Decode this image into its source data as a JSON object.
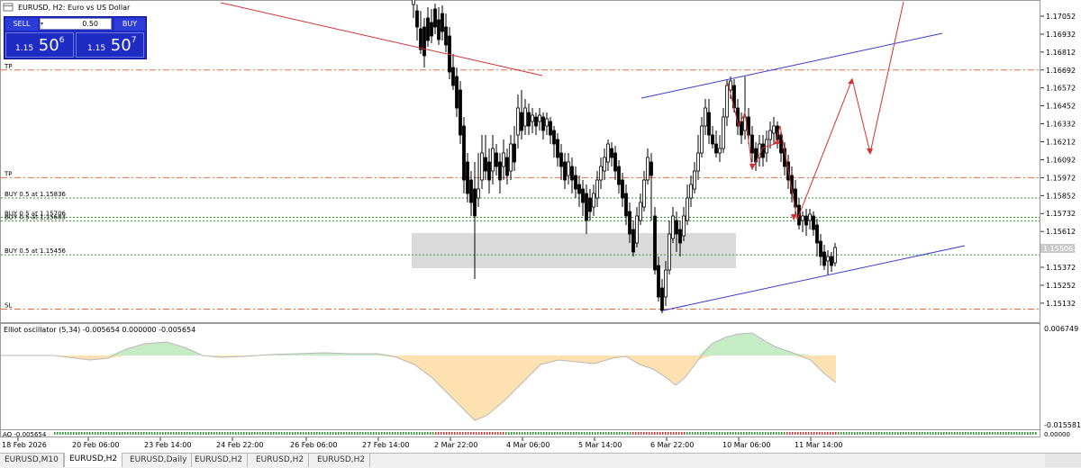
{
  "window": {
    "title": "EURUSD, H2:  Euro vs US Dollar"
  },
  "trade_panel": {
    "sell_label": "SELL",
    "buy_label": "BUY",
    "lot": "0.50",
    "sell_price": {
      "prefix": "1.15",
      "big": "50",
      "sup": "6"
    },
    "buy_price": {
      "prefix": "1.15",
      "big": "50",
      "sup": "7"
    }
  },
  "price_axis": {
    "ticks": [
      "1.17052",
      "1.16932",
      "1.16812",
      "1.16692",
      "1.16572",
      "1.16452",
      "1.16332",
      "1.16212",
      "1.16092",
      "1.15972",
      "1.15852",
      "1.15732",
      "1.15612",
      "1.15492",
      "1.15372",
      "1.15252",
      "1.15132"
    ],
    "current_price": "1.15506"
  },
  "levels": [
    {
      "label": "TP",
      "price": 1.16692,
      "type": "tp"
    },
    {
      "label": "TP",
      "price": 1.15972,
      "type": "tp"
    },
    {
      "label": "BUY 0.5 at 1.15836",
      "price": 1.15836,
      "type": "buy"
    },
    {
      "label": "BUY 0.5 at 1.15706",
      "price": 1.15706,
      "type": "buy"
    },
    {
      "label": "BUY 0.5 at 1.15683",
      "price": 1.15683,
      "type": "buy"
    },
    {
      "label": "BUY 0.5 at 1.15456",
      "price": 1.15456,
      "type": "buy"
    },
    {
      "label": "SL",
      "price": 1.15092,
      "type": "sl"
    }
  ],
  "oscillator": {
    "label": "Elliot oscillator (5,34) -0.005654 0.000000 -0.005654",
    "axis_top": "0.006749",
    "axis_bottom": "-0.015581",
    "ao_label": "AO -0.005654",
    "ao_axis": "0.00000"
  },
  "time_axis": [
    "18 Feb 2026",
    "20 Feb 06:00",
    "23 Feb 14:00",
    "24 Feb 22:00",
    "26 Feb 06:00",
    "27 Feb 14:00",
    "2 Mar 22:00",
    "4 Mar 06:00",
    "5 Mar 14:00",
    "6 Mar 22:00",
    "10 Mar 06:00",
    "11 Mar 14:00"
  ],
  "tabs": [
    {
      "label": "EURUSD,M10",
      "active": false
    },
    {
      "label": "EURUSD,H2",
      "active": true
    },
    {
      "label": "EURUSD,Daily",
      "active": false
    },
    {
      "label": "EURUSD,H2",
      "active": false
    },
    {
      "label": "EURUSD,H2",
      "active": false
    },
    {
      "label": "EURUSD,H2",
      "active": false
    }
  ],
  "colors": {
    "tp_line": "#e07040",
    "buy_line": "#2e9a2e",
    "sl_line": "#e07040",
    "trend_red": "#d63030",
    "channel_blue": "#3a3ad0",
    "zone": "#d3d3d3",
    "osc_positive": "#c6ecc6",
    "osc_negative": "#fde1b0",
    "panel_blue": "#1e2cc4"
  }
}
